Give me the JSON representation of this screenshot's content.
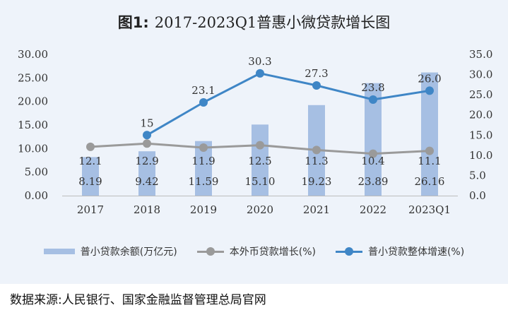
{
  "figure": {
    "title_prefix": "图1:",
    "title_main": "2017-2023Q1普惠小微贷款增长图",
    "source": "数据来源:人民银行、国家金融监督管理总局官网"
  },
  "chart_data": {
    "type": "bar",
    "categories": [
      "2017",
      "2018",
      "2019",
      "2020",
      "2021",
      "2022",
      "2023Q1"
    ],
    "series": [
      {
        "name": "普小贷款余额(万亿元)",
        "kind": "bar",
        "axis": "left",
        "color": "#a6bfe3",
        "values": [
          8.19,
          9.42,
          11.59,
          15.1,
          19.23,
          23.89,
          26.16
        ],
        "labels": [
          "8.19",
          "9.42",
          "11.59",
          "15.10",
          "19.23",
          "23.89",
          "26.16"
        ]
      },
      {
        "name": "本外币贷款增长(%)",
        "kind": "line",
        "axis": "right",
        "color": "#9a9a9a",
        "values": [
          12.1,
          12.9,
          11.9,
          12.5,
          11.3,
          10.4,
          11.1
        ],
        "labels": [
          "12.1",
          "12.9",
          "11.9",
          "12.5",
          "11.3",
          "10.4",
          "11.1"
        ]
      },
      {
        "name": "普小贷款整体增速(%)",
        "kind": "line",
        "axis": "right",
        "color": "#3f86c6",
        "values": [
          null,
          15,
          23.1,
          30.3,
          27.3,
          23.8,
          26.0
        ],
        "labels": [
          "",
          "15",
          "23.1",
          "30.3",
          "27.3",
          "23.8",
          "26.0"
        ]
      }
    ],
    "left_axis": {
      "ylim": [
        0,
        30
      ],
      "ticks": [
        "0.00",
        "5.00",
        "10.00",
        "15.00",
        "20.00",
        "25.00",
        "30.00"
      ]
    },
    "right_axis": {
      "ylim": [
        0,
        35
      ],
      "ticks": [
        "0.0",
        "5.0",
        "10.0",
        "15.0",
        "20.0",
        "25.0",
        "30.0",
        "35.0"
      ]
    },
    "grid": false,
    "legend": "bottom"
  }
}
